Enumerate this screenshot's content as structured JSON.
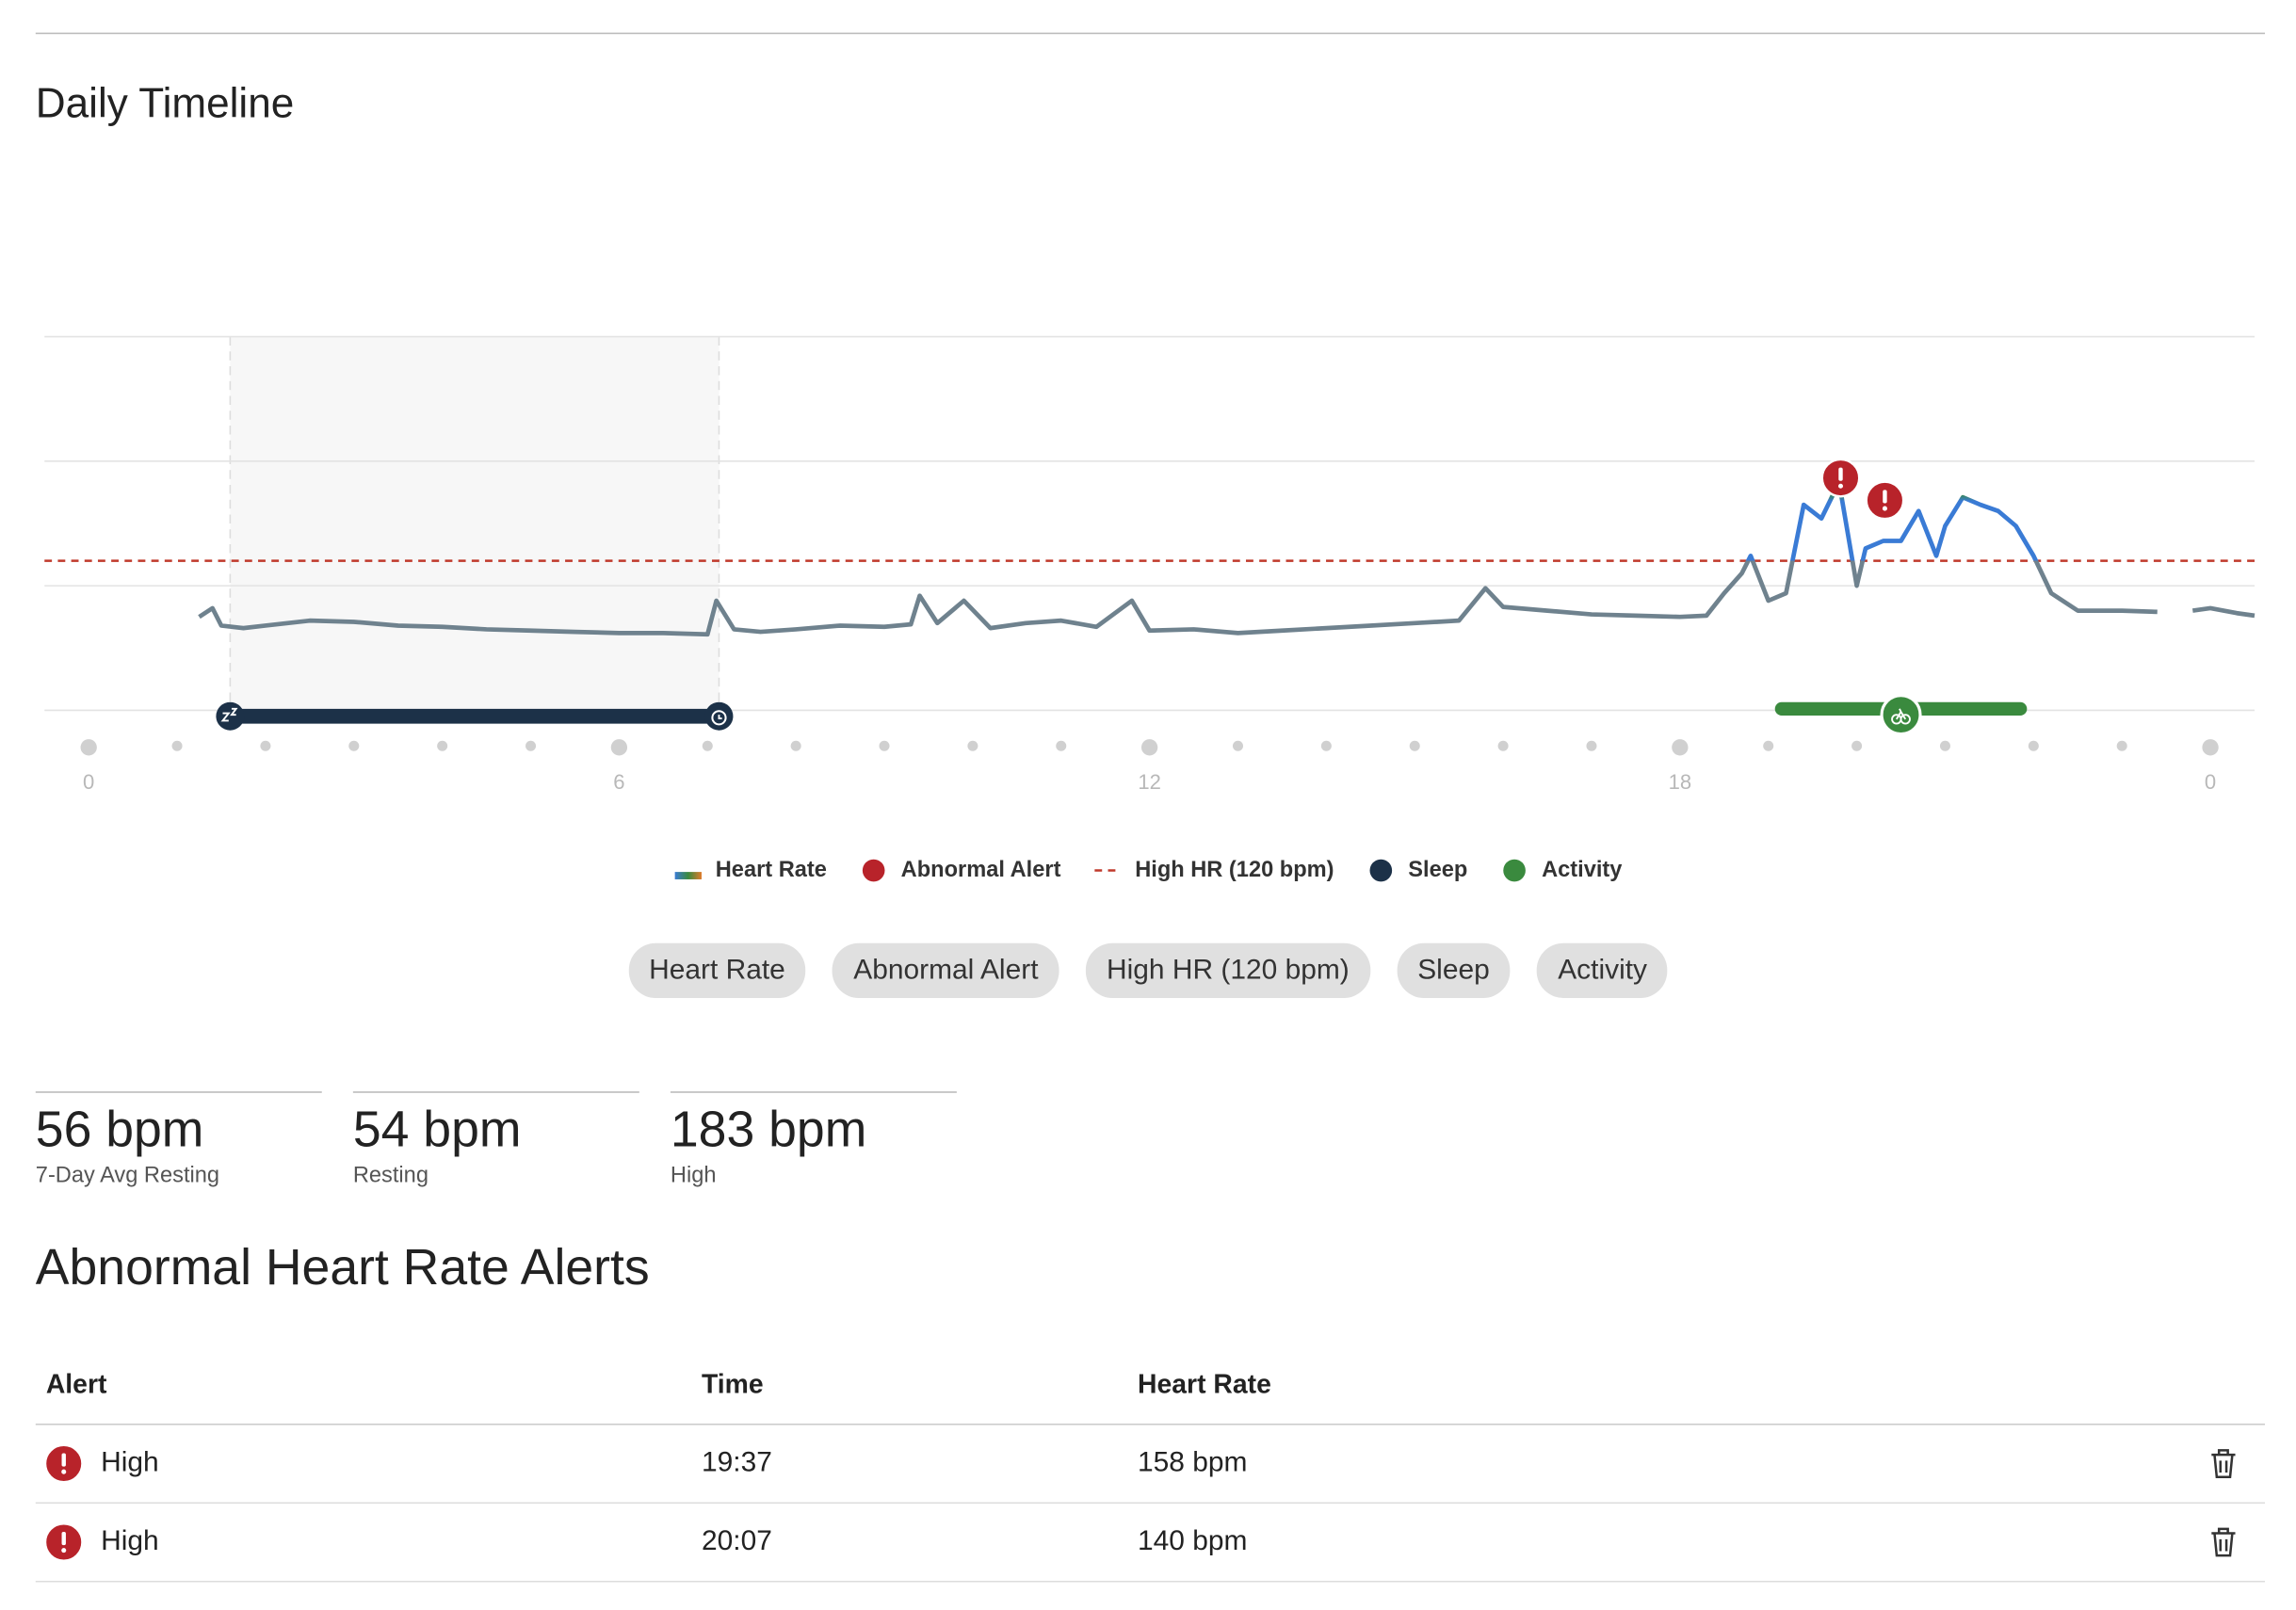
{
  "title": "Daily Timeline",
  "chart_data": {
    "type": "line",
    "xlim": [
      -0.5,
      24.5
    ],
    "ylim": [
      0,
      300
    ],
    "ygrid": [
      0,
      100,
      200,
      300
    ],
    "xticks": [
      0,
      6,
      12,
      18,
      {
        "value": 24,
        "label": "0"
      }
    ],
    "xminor": [
      1,
      2,
      3,
      4,
      5,
      7,
      8,
      9,
      10,
      11,
      13,
      14,
      15,
      16,
      17,
      19,
      20,
      21,
      22,
      23
    ],
    "high_hr": 120,
    "sleep": {
      "start": 1.6,
      "end": 7.13
    },
    "activity": {
      "start": 19.15,
      "end": 21.85
    },
    "legend": [
      {
        "name": "Heart Rate",
        "color": "#3a7bd5"
      },
      {
        "name": "Abnormal Alert",
        "color": "#b8232a"
      },
      {
        "name": "High HR (120 bpm)",
        "color": "#c0392b"
      },
      {
        "name": "Sleep",
        "color": "#1c3148"
      },
      {
        "name": "Activity",
        "color": "#3a8a3e"
      }
    ],
    "series": [
      {
        "name": "Heart Rate",
        "color": "#6f828e",
        "x": [
          1.25,
          1.4,
          1.5,
          1.75,
          2,
          2.5,
          3,
          3.5,
          4,
          4.5,
          5,
          5.5,
          6,
          6.5,
          7,
          7.1,
          7.3,
          7.6,
          8,
          8.5,
          9,
          9.3,
          9.4,
          9.6,
          9.9,
          10.2,
          10.6,
          11,
          11.4,
          11.8,
          12,
          12.5,
          13,
          13.5,
          14,
          14.5,
          15,
          15.5,
          15.8,
          16,
          16.5,
          17,
          17.5,
          18,
          18.3,
          18.5,
          18.7,
          18.8,
          19,
          19.2,
          19.4,
          19.6,
          19.8,
          20,
          20.1,
          20.3,
          20.5,
          20.7,
          20.9,
          21,
          21.2,
          21.4,
          21.6,
          21.8,
          22,
          22.2,
          22.5,
          23,
          23.4,
          23.6,
          23.8,
          24,
          24.3,
          24.5
        ],
        "values": [
          75,
          82,
          68,
          66,
          68,
          72,
          71,
          68,
          67,
          65,
          64,
          63,
          62,
          62,
          61,
          88,
          65,
          63,
          65,
          68,
          67,
          69,
          92,
          70,
          88,
          66,
          70,
          72,
          67,
          88,
          64,
          65,
          62,
          64,
          66,
          68,
          70,
          72,
          98,
          83,
          80,
          77,
          76,
          75,
          76,
          94,
          110,
          124,
          88,
          94,
          165,
          154,
          183,
          100,
          130,
          136,
          136,
          160,
          124,
          148,
          171,
          165,
          160,
          148,
          124,
          94,
          80,
          80,
          79,
          null,
          80,
          82,
          78,
          76
        ]
      }
    ]
  },
  "stats": [
    {
      "value": "56 bpm",
      "label": "7-Day Avg Resting"
    },
    {
      "value": "54 bpm",
      "label": "Resting"
    },
    {
      "value": "183 bpm",
      "label": "High"
    }
  ],
  "alerts_title": "Abnormal Heart Rate Alerts",
  "table": {
    "headers": [
      "Alert",
      "Time",
      "Heart Rate"
    ],
    "rows": [
      [
        "High",
        "19:37",
        "158 bpm"
      ],
      [
        "High",
        "20:07",
        "140 bpm"
      ]
    ]
  }
}
